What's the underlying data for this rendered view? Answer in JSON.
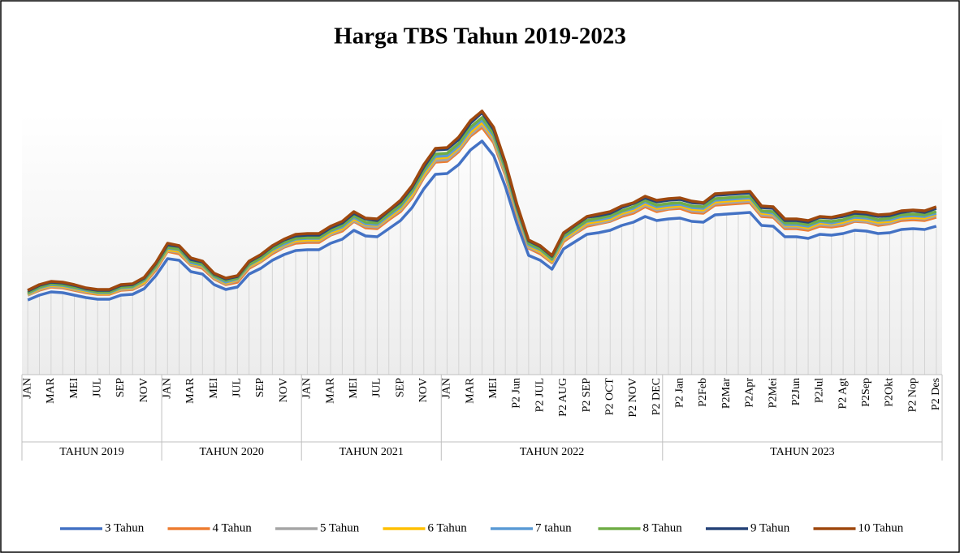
{
  "chart_data": {
    "type": "line",
    "title": "Harga TBS Tahun 2019-2023",
    "categories": [
      "JAN",
      null,
      "MAR",
      null,
      "MEI",
      null,
      "JUL",
      null,
      "SEP",
      null,
      "NOV",
      null,
      "JAN",
      null,
      "MAR",
      null,
      "MEI",
      null,
      "JUL",
      null,
      "SEP",
      null,
      "NOV",
      null,
      "JAN",
      null,
      "MAR",
      null,
      "MEI",
      null,
      "JUL",
      null,
      "SEP",
      null,
      "NOV",
      null,
      "JAN",
      null,
      "MAR",
      null,
      "MEI",
      null,
      "P2 Jun",
      null,
      "P2 JUL",
      null,
      "P2 AUG",
      null,
      "P2 SEP",
      null,
      "P2 OCT",
      null,
      "P2 NOV",
      null,
      "P2 DEC",
      null,
      "P2 Jan",
      null,
      "P2Feb",
      null,
      "P2Mar",
      null,
      "P2Apr",
      null,
      "P2Mei",
      null,
      "P2Jun",
      null,
      "P2Jul",
      null,
      "P2 Agt",
      null,
      "P2Sep",
      null,
      "P2Okt",
      null,
      "P2 Nop",
      null,
      "P2 Des"
    ],
    "x_groups": [
      {
        "label": "TAHUN 2019",
        "count": 12
      },
      {
        "label": "TAHUN 2020",
        "count": 12
      },
      {
        "label": "TAHUN 2021",
        "count": 12
      },
      {
        "label": "TAHUN 2022",
        "count": 19
      },
      {
        "label": "TAHUN 2023",
        "count": 24
      }
    ],
    "ylim": [
      0,
      335
    ],
    "series": [
      {
        "name": "3 Tahun",
        "color": "#4472c4",
        "values": [
          92,
          98,
          102,
          101,
          98,
          95,
          93,
          93,
          98,
          99,
          106,
          122,
          143,
          141,
          127,
          124,
          111,
          105,
          108,
          124,
          131,
          141,
          148,
          153,
          154,
          154,
          162,
          167,
          178,
          171,
          170,
          180,
          190,
          206,
          229,
          247,
          248,
          259,
          277,
          288,
          270,
          232,
          186,
          147,
          141,
          130,
          155,
          164,
          173,
          175,
          178,
          184,
          188,
          195,
          190,
          192,
          193,
          189,
          188,
          197,
          198,
          199,
          200,
          184,
          183,
          170,
          170,
          168,
          173,
          172,
          174,
          178,
          177,
          174,
          175,
          179,
          180,
          179,
          183
        ]
      },
      {
        "name": "4 Tahun",
        "color": "#ed7d31",
        "values": [
          98,
          104,
          108,
          107,
          104,
          101,
          99,
          99,
          104,
          105,
          112,
          129,
          152,
          149,
          135,
          131,
          118,
          111,
          114,
          131,
          139,
          149,
          157,
          162,
          163,
          163,
          172,
          177,
          189,
          181,
          180,
          191,
          201,
          218,
          243,
          262,
          263,
          275,
          294,
          305,
          286,
          246,
          197,
          156,
          149,
          138,
          164,
          174,
          183,
          186,
          189,
          195,
          199,
          207,
          201,
          204,
          205,
          200,
          199,
          209,
          210,
          211,
          212,
          195,
          194,
          180,
          180,
          178,
          183,
          182,
          184,
          189,
          188,
          184,
          186,
          190,
          191,
          190,
          194
        ]
      },
      {
        "name": "5 Tahun",
        "color": "#a5a5a5",
        "values": [
          98,
          105,
          109,
          108,
          105,
          102,
          100,
          100,
          105,
          106,
          113,
          131,
          153,
          151,
          136,
          133,
          119,
          112,
          116,
          133,
          140,
          151,
          158,
          164,
          165,
          165,
          173,
          179,
          190,
          183,
          182,
          193,
          203,
          220,
          245,
          264,
          265,
          277,
          296,
          308,
          289,
          248,
          199,
          157,
          151,
          139,
          166,
          175,
          185,
          187,
          190,
          197,
          201,
          209,
          203,
          205,
          207,
          202,
          201,
          211,
          212,
          213,
          214,
          197,
          196,
          182,
          182,
          180,
          185,
          184,
          186,
          190,
          189,
          186,
          187,
          192,
          193,
          192,
          196
        ]
      },
      {
        "name": "6 Tahun",
        "color": "#ffc000",
        "values": [
          99,
          106,
          110,
          109,
          106,
          103,
          100,
          100,
          106,
          107,
          114,
          132,
          154,
          152,
          137,
          134,
          120,
          113,
          117,
          134,
          141,
          152,
          160,
          165,
          166,
          166,
          175,
          180,
          192,
          185,
          184,
          194,
          205,
          222,
          247,
          267,
          268,
          280,
          299,
          311,
          292,
          251,
          201,
          159,
          152,
          140,
          167,
          177,
          187,
          189,
          192,
          199,
          203,
          211,
          205,
          207,
          208,
          204,
          203,
          213,
          214,
          215,
          216,
          199,
          198,
          184,
          184,
          181,
          187,
          186,
          188,
          192,
          191,
          188,
          189,
          193,
          194,
          193,
          198
        ]
      },
      {
        "name": "7 tahun",
        "color": "#5b9bd5",
        "values": [
          100,
          107,
          111,
          110,
          107,
          104,
          101,
          101,
          107,
          108,
          116,
          133,
          156,
          154,
          138,
          135,
          121,
          114,
          118,
          135,
          143,
          154,
          161,
          167,
          168,
          168,
          177,
          182,
          194,
          186,
          185,
          196,
          207,
          225,
          250,
          269,
          270,
          282,
          302,
          314,
          294,
          253,
          203,
          160,
          154,
          142,
          169,
          179,
          189,
          191,
          194,
          201,
          205,
          213,
          207,
          209,
          210,
          206,
          205,
          215,
          216,
          217,
          218,
          201,
          199,
          185,
          185,
          183,
          189,
          187,
          190,
          194,
          193,
          190,
          191,
          195,
          196,
          195,
          199
        ]
      },
      {
        "name": "8 Tahun",
        "color": "#70ad47",
        "values": [
          101,
          108,
          112,
          111,
          108,
          105,
          102,
          102,
          108,
          109,
          117,
          134,
          157,
          155,
          140,
          136,
          122,
          116,
          119,
          136,
          144,
          155,
          163,
          168,
          169,
          169,
          178,
          184,
          196,
          188,
          187,
          198,
          209,
          227,
          252,
          272,
          273,
          285,
          305,
          317,
          297,
          255,
          205,
          162,
          155,
          143,
          171,
          180,
          190,
          193,
          196,
          202,
          207,
          215,
          209,
          211,
          212,
          208,
          207,
          217,
          218,
          219,
          220,
          202,
          201,
          187,
          187,
          185,
          190,
          189,
          191,
          196,
          195,
          191,
          193,
          197,
          198,
          197,
          201
        ]
      },
      {
        "name": "9 Tahun",
        "color": "#264478",
        "values": [
          103,
          110,
          114,
          113,
          110,
          106,
          104,
          104,
          110,
          111,
          119,
          137,
          160,
          158,
          142,
          139,
          124,
          118,
          121,
          139,
          147,
          158,
          166,
          171,
          172,
          172,
          181,
          187,
          199,
          192,
          190,
          202,
          213,
          231,
          256,
          277,
          278,
          290,
          310,
          323,
          302,
          260,
          208,
          165,
          158,
          146,
          174,
          184,
          194,
          196,
          199,
          206,
          211,
          218,
          213,
          215,
          216,
          212,
          211,
          221,
          222,
          223,
          224,
          206,
          205,
          190,
          190,
          188,
          194,
          193,
          195,
          199,
          198,
          195,
          196,
          200,
          202,
          200,
          205
        ]
      },
      {
        "name": "10 Tahun",
        "color": "#9e480e",
        "values": [
          104,
          111,
          115,
          114,
          111,
          107,
          105,
          105,
          111,
          112,
          120,
          138,
          162,
          159,
          144,
          140,
          125,
          119,
          122,
          140,
          148,
          159,
          167,
          173,
          174,
          174,
          183,
          189,
          201,
          193,
          192,
          203,
          215,
          233,
          259,
          279,
          280,
          293,
          313,
          325,
          305,
          262,
          210,
          166,
          159,
          147,
          175,
          185,
          195,
          198,
          201,
          208,
          212,
          220,
          215,
          217,
          218,
          214,
          212,
          223,
          224,
          225,
          226,
          208,
          207,
          192,
          192,
          190,
          195,
          194,
          197,
          201,
          200,
          197,
          198,
          202,
          203,
          202,
          207
        ]
      }
    ]
  }
}
